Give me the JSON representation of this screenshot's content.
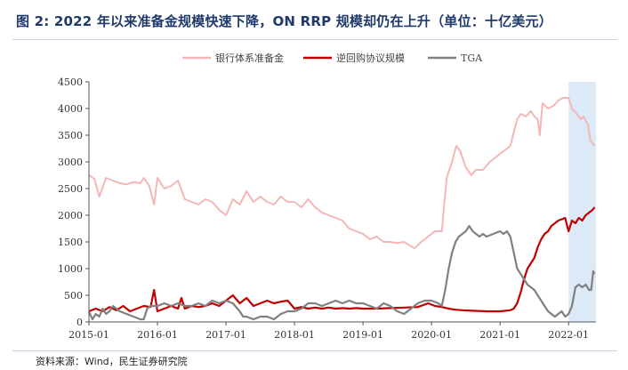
{
  "header": {
    "title": "图 2: 2022 年以来准备金规模快速下降，ON RRP 规模却仍在上升（单位：十亿美元）"
  },
  "footer": {
    "source": "资料来源：Wind，民生证券研究院"
  },
  "colors": {
    "reserves": "#f4b7b7",
    "rrp": "#c00000",
    "tga": "#808080",
    "highlight": "#dce9f7",
    "title": "#1f3a6b"
  },
  "chart_data": {
    "type": "line",
    "title": "",
    "xlabel": "",
    "ylabel": "",
    "ylim": [
      0,
      4500
    ],
    "yticks": [
      "0",
      "500",
      "1000",
      "1500",
      "2000",
      "2500",
      "3000",
      "3500",
      "4000",
      "4500"
    ],
    "xticks": [
      "2015-01",
      "2016-01",
      "2017-01",
      "2018-01",
      "2019-01",
      "2020-01",
      "2021-01",
      "2022-01"
    ],
    "xlim": [
      2015.0,
      2022.4
    ],
    "legend_position": "top",
    "grid": false,
    "highlight_region": [
      2022.0,
      2022.4
    ],
    "series": [
      {
        "name": "银行体系准备金",
        "color_key": "reserves",
        "points": [
          [
            2015.0,
            2750
          ],
          [
            2015.08,
            2680
          ],
          [
            2015.15,
            2350
          ],
          [
            2015.25,
            2700
          ],
          [
            2015.35,
            2650
          ],
          [
            2015.45,
            2600
          ],
          [
            2015.55,
            2580
          ],
          [
            2015.65,
            2620
          ],
          [
            2015.75,
            2600
          ],
          [
            2015.8,
            2700
          ],
          [
            2015.88,
            2550
          ],
          [
            2015.95,
            2200
          ],
          [
            2016.0,
            2700
          ],
          [
            2016.1,
            2500
          ],
          [
            2016.2,
            2550
          ],
          [
            2016.3,
            2650
          ],
          [
            2016.4,
            2300
          ],
          [
            2016.5,
            2250
          ],
          [
            2016.6,
            2200
          ],
          [
            2016.7,
            2300
          ],
          [
            2016.8,
            2250
          ],
          [
            2016.9,
            2100
          ],
          [
            2017.0,
            2000
          ],
          [
            2017.1,
            2300
          ],
          [
            2017.2,
            2200
          ],
          [
            2017.3,
            2450
          ],
          [
            2017.4,
            2250
          ],
          [
            2017.5,
            2350
          ],
          [
            2017.6,
            2250
          ],
          [
            2017.7,
            2200
          ],
          [
            2017.8,
            2350
          ],
          [
            2017.9,
            2250
          ],
          [
            2018.0,
            2250
          ],
          [
            2018.1,
            2150
          ],
          [
            2018.2,
            2300
          ],
          [
            2018.3,
            2150
          ],
          [
            2018.4,
            2050
          ],
          [
            2018.5,
            2000
          ],
          [
            2018.6,
            1950
          ],
          [
            2018.7,
            1900
          ],
          [
            2018.8,
            1750
          ],
          [
            2018.9,
            1700
          ],
          [
            2019.0,
            1650
          ],
          [
            2019.1,
            1550
          ],
          [
            2019.2,
            1600
          ],
          [
            2019.3,
            1500
          ],
          [
            2019.4,
            1500
          ],
          [
            2019.5,
            1480
          ],
          [
            2019.6,
            1500
          ],
          [
            2019.7,
            1420
          ],
          [
            2019.75,
            1380
          ],
          [
            2019.85,
            1500
          ],
          [
            2019.95,
            1600
          ],
          [
            2020.05,
            1700
          ],
          [
            2020.15,
            1700
          ],
          [
            2020.22,
            2700
          ],
          [
            2020.3,
            3000
          ],
          [
            2020.36,
            3300
          ],
          [
            2020.42,
            3200
          ],
          [
            2020.5,
            2900
          ],
          [
            2020.58,
            2750
          ],
          [
            2020.65,
            2850
          ],
          [
            2020.75,
            2850
          ],
          [
            2020.85,
            3000
          ],
          [
            2020.95,
            3100
          ],
          [
            2021.05,
            3200
          ],
          [
            2021.15,
            3300
          ],
          [
            2021.25,
            3800
          ],
          [
            2021.3,
            3900
          ],
          [
            2021.38,
            3850
          ],
          [
            2021.45,
            3950
          ],
          [
            2021.5,
            3850
          ],
          [
            2021.55,
            3800
          ],
          [
            2021.58,
            3500
          ],
          [
            2021.62,
            4100
          ],
          [
            2021.7,
            4000
          ],
          [
            2021.78,
            4050
          ],
          [
            2021.85,
            4150
          ],
          [
            2021.92,
            4200
          ],
          [
            2022.0,
            4200
          ],
          [
            2022.05,
            4000
          ],
          [
            2022.12,
            3900
          ],
          [
            2022.18,
            3800
          ],
          [
            2022.22,
            3850
          ],
          [
            2022.28,
            3700
          ],
          [
            2022.32,
            3400
          ],
          [
            2022.38,
            3300
          ]
        ]
      },
      {
        "name": "逆回购协议规模",
        "color_key": "rrp",
        "points": [
          [
            2015.0,
            200
          ],
          [
            2015.1,
            250
          ],
          [
            2015.2,
            200
          ],
          [
            2015.3,
            280
          ],
          [
            2015.4,
            220
          ],
          [
            2015.5,
            300
          ],
          [
            2015.6,
            200
          ],
          [
            2015.7,
            250
          ],
          [
            2015.8,
            300
          ],
          [
            2015.9,
            280
          ],
          [
            2015.95,
            600
          ],
          [
            2016.0,
            200
          ],
          [
            2016.1,
            250
          ],
          [
            2016.2,
            300
          ],
          [
            2016.3,
            250
          ],
          [
            2016.35,
            450
          ],
          [
            2016.4,
            250
          ],
          [
            2016.5,
            300
          ],
          [
            2016.6,
            280
          ],
          [
            2016.7,
            300
          ],
          [
            2016.8,
            350
          ],
          [
            2016.9,
            300
          ],
          [
            2017.0,
            400
          ],
          [
            2017.1,
            500
          ],
          [
            2017.2,
            350
          ],
          [
            2017.3,
            450
          ],
          [
            2017.4,
            300
          ],
          [
            2017.5,
            350
          ],
          [
            2017.6,
            400
          ],
          [
            2017.7,
            350
          ],
          [
            2017.8,
            380
          ],
          [
            2017.9,
            400
          ],
          [
            2018.0,
            250
          ],
          [
            2018.1,
            280
          ],
          [
            2018.2,
            250
          ],
          [
            2018.3,
            270
          ],
          [
            2018.4,
            250
          ],
          [
            2018.5,
            270
          ],
          [
            2018.6,
            250
          ],
          [
            2018.7,
            260
          ],
          [
            2018.8,
            250
          ],
          [
            2018.9,
            260
          ],
          [
            2019.0,
            250
          ],
          [
            2019.2,
            250
          ],
          [
            2019.4,
            260
          ],
          [
            2019.6,
            270
          ],
          [
            2019.8,
            280
          ],
          [
            2019.95,
            350
          ],
          [
            2020.05,
            300
          ],
          [
            2020.15,
            280
          ],
          [
            2020.25,
            250
          ],
          [
            2020.35,
            230
          ],
          [
            2020.45,
            220
          ],
          [
            2020.6,
            210
          ],
          [
            2020.8,
            200
          ],
          [
            2021.0,
            200
          ],
          [
            2021.15,
            220
          ],
          [
            2021.2,
            250
          ],
          [
            2021.25,
            350
          ],
          [
            2021.3,
            550
          ],
          [
            2021.35,
            800
          ],
          [
            2021.4,
            1000
          ],
          [
            2021.45,
            1100
          ],
          [
            2021.5,
            1200
          ],
          [
            2021.55,
            1400
          ],
          [
            2021.6,
            1550
          ],
          [
            2021.65,
            1650
          ],
          [
            2021.7,
            1700
          ],
          [
            2021.75,
            1800
          ],
          [
            2021.8,
            1850
          ],
          [
            2021.85,
            1900
          ],
          [
            2021.95,
            1950
          ],
          [
            2022.0,
            1700
          ],
          [
            2022.05,
            1900
          ],
          [
            2022.1,
            1850
          ],
          [
            2022.15,
            1950
          ],
          [
            2022.2,
            1900
          ],
          [
            2022.25,
            2000
          ],
          [
            2022.3,
            2050
          ],
          [
            2022.35,
            2100
          ],
          [
            2022.38,
            2150
          ]
        ]
      },
      {
        "name": "TGA",
        "color_key": "tga",
        "points": [
          [
            2015.0,
            200
          ],
          [
            2015.05,
            50
          ],
          [
            2015.1,
            150
          ],
          [
            2015.15,
            100
          ],
          [
            2015.2,
            250
          ],
          [
            2015.25,
            150
          ],
          [
            2015.3,
            200
          ],
          [
            2015.35,
            300
          ],
          [
            2015.4,
            250
          ],
          [
            2015.45,
            200
          ],
          [
            2015.55,
            150
          ],
          [
            2015.65,
            100
          ],
          [
            2015.75,
            50
          ],
          [
            2015.8,
            50
          ],
          [
            2015.85,
            250
          ],
          [
            2015.9,
            300
          ],
          [
            2016.0,
            300
          ],
          [
            2016.1,
            350
          ],
          [
            2016.2,
            300
          ],
          [
            2016.3,
            350
          ],
          [
            2016.4,
            300
          ],
          [
            2016.5,
            300
          ],
          [
            2016.6,
            350
          ],
          [
            2016.7,
            300
          ],
          [
            2016.8,
            400
          ],
          [
            2016.9,
            350
          ],
          [
            2017.0,
            400
          ],
          [
            2017.1,
            350
          ],
          [
            2017.2,
            200
          ],
          [
            2017.25,
            100
          ],
          [
            2017.3,
            100
          ],
          [
            2017.4,
            50
          ],
          [
            2017.5,
            100
          ],
          [
            2017.6,
            100
          ],
          [
            2017.7,
            50
          ],
          [
            2017.8,
            150
          ],
          [
            2017.9,
            200
          ],
          [
            2018.0,
            200
          ],
          [
            2018.1,
            250
          ],
          [
            2018.2,
            350
          ],
          [
            2018.3,
            350
          ],
          [
            2018.4,
            300
          ],
          [
            2018.5,
            350
          ],
          [
            2018.6,
            400
          ],
          [
            2018.7,
            350
          ],
          [
            2018.8,
            400
          ],
          [
            2018.9,
            350
          ],
          [
            2019.0,
            350
          ],
          [
            2019.1,
            300
          ],
          [
            2019.2,
            250
          ],
          [
            2019.3,
            350
          ],
          [
            2019.4,
            300
          ],
          [
            2019.5,
            200
          ],
          [
            2019.6,
            150
          ],
          [
            2019.7,
            250
          ],
          [
            2019.8,
            350
          ],
          [
            2019.9,
            400
          ],
          [
            2020.0,
            400
          ],
          [
            2020.1,
            350
          ],
          [
            2020.15,
            300
          ],
          [
            2020.2,
            600
          ],
          [
            2020.25,
            1000
          ],
          [
            2020.3,
            1300
          ],
          [
            2020.35,
            1500
          ],
          [
            2020.4,
            1600
          ],
          [
            2020.5,
            1700
          ],
          [
            2020.55,
            1800
          ],
          [
            2020.6,
            1700
          ],
          [
            2020.65,
            1650
          ],
          [
            2020.7,
            1600
          ],
          [
            2020.75,
            1650
          ],
          [
            2020.8,
            1600
          ],
          [
            2020.9,
            1650
          ],
          [
            2021.0,
            1700
          ],
          [
            2021.05,
            1650
          ],
          [
            2021.1,
            1700
          ],
          [
            2021.15,
            1600
          ],
          [
            2021.2,
            1300
          ],
          [
            2021.25,
            1000
          ],
          [
            2021.3,
            900
          ],
          [
            2021.35,
            800
          ],
          [
            2021.4,
            700
          ],
          [
            2021.5,
            600
          ],
          [
            2021.55,
            500
          ],
          [
            2021.6,
            400
          ],
          [
            2021.65,
            300
          ],
          [
            2021.7,
            200
          ],
          [
            2021.75,
            150
          ],
          [
            2021.8,
            100
          ],
          [
            2021.85,
            150
          ],
          [
            2021.9,
            200
          ],
          [
            2021.95,
            100
          ],
          [
            2022.0,
            150
          ],
          [
            2022.05,
            300
          ],
          [
            2022.1,
            650
          ],
          [
            2022.15,
            700
          ],
          [
            2022.2,
            650
          ],
          [
            2022.25,
            700
          ],
          [
            2022.3,
            600
          ],
          [
            2022.33,
            600
          ],
          [
            2022.36,
            950
          ],
          [
            2022.38,
            900
          ]
        ]
      }
    ]
  }
}
